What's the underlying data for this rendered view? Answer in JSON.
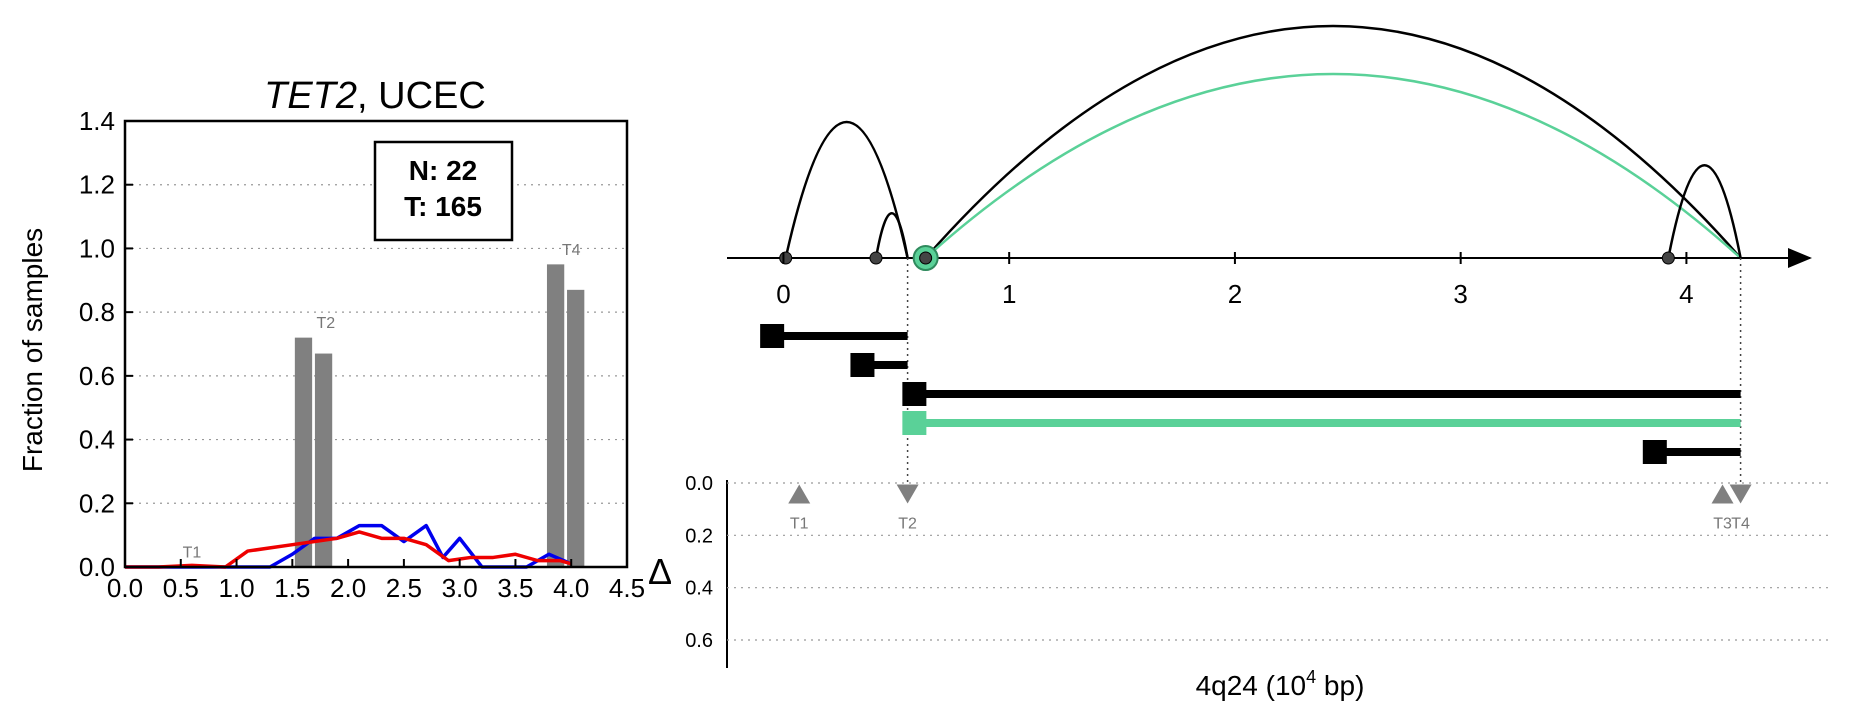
{
  "chart_data": [
    {
      "type": "bar",
      "title_italic": "TET2",
      "title_rest": ", UCEC",
      "ylabel": "Fraction of samples",
      "xlim": [
        0.0,
        4.5
      ],
      "ylim": [
        0.0,
        1.4
      ],
      "xticks": [
        "0.0",
        "0.5",
        "1.0",
        "1.5",
        "2.0",
        "2.5",
        "3.0",
        "3.5",
        "4.0",
        "4.5"
      ],
      "yticks": [
        "0.0",
        "0.2",
        "0.4",
        "0.6",
        "0.8",
        "1.0",
        "1.2",
        "1.4"
      ],
      "grid": true,
      "legend": {
        "placement": "top-center",
        "n_label": "N: 22",
        "t_label": "T: 165"
      },
      "bars": [
        {
          "x": 1.6,
          "value": 0.72
        },
        {
          "x": 1.78,
          "value": 0.67
        },
        {
          "x": 3.86,
          "value": 0.95
        },
        {
          "x": 4.04,
          "value": 0.87
        }
      ],
      "site_labels": [
        {
          "label": "T1",
          "x": 0.6,
          "y": 0.03
        },
        {
          "label": "T2",
          "x": 1.8,
          "y": 0.75
        },
        {
          "label": "T4",
          "x": 4.0,
          "y": 0.98
        }
      ],
      "series": [
        {
          "color": "#0000ee",
          "x": [
            0.0,
            0.3,
            0.6,
            0.9,
            1.1,
            1.3,
            1.5,
            1.7,
            1.9,
            2.1,
            2.3,
            2.5,
            2.7,
            2.85,
            3.0,
            3.2,
            3.4,
            3.6,
            3.8,
            4.0
          ],
          "y": [
            0.0,
            0.0,
            0.0,
            0.0,
            0.0,
            0.0,
            0.04,
            0.09,
            0.09,
            0.13,
            0.13,
            0.08,
            0.13,
            0.03,
            0.09,
            0.0,
            0.0,
            0.0,
            0.04,
            0.01
          ]
        },
        {
          "color": "#ee0000",
          "x": [
            0.0,
            0.3,
            0.6,
            0.9,
            1.1,
            1.3,
            1.5,
            1.7,
            1.9,
            2.1,
            2.3,
            2.5,
            2.7,
            2.9,
            3.1,
            3.3,
            3.5,
            3.7,
            3.9,
            4.0
          ],
          "y": [
            0.0,
            0.0,
            0.005,
            0.0,
            0.05,
            0.06,
            0.07,
            0.08,
            0.09,
            0.11,
            0.09,
            0.09,
            0.07,
            0.02,
            0.03,
            0.03,
            0.04,
            0.02,
            0.02,
            0.01
          ]
        }
      ]
    },
    {
      "type": "diagram",
      "xlabel_pre": "4q24 (10",
      "xlabel_exp": "4",
      "xlabel_post": " bp)",
      "xlim": [
        -0.25,
        4.45
      ],
      "xticks": [
        "0",
        "1",
        "2",
        "3",
        "4"
      ],
      "sites": [
        {
          "x": 0.01
        },
        {
          "x": 0.41
        },
        {
          "x": 0.63,
          "highlight": true,
          "color": "#5ad198"
        },
        {
          "x": 3.92
        }
      ],
      "arcs": [
        {
          "x1": 0.01,
          "x2": 0.55,
          "height": 0.85,
          "color": "#000000"
        },
        {
          "x1": 0.41,
          "x2": 0.55,
          "height": 0.28,
          "color": "#000000"
        },
        {
          "x1": 0.63,
          "x2": 4.24,
          "height": 1.45,
          "color": "#000000"
        },
        {
          "x1": 0.63,
          "x2": 4.24,
          "height": 1.15,
          "color": "#5ad198"
        },
        {
          "x1": 3.92,
          "x2": 4.24,
          "height": 0.58,
          "color": "#000000"
        }
      ],
      "segments": [
        {
          "start": -0.05,
          "end": 0.55,
          "color": "#000000"
        },
        {
          "start": 0.35,
          "end": 0.55,
          "color": "#000000"
        },
        {
          "start": 0.58,
          "end": 4.24,
          "color": "#000000"
        },
        {
          "start": 0.58,
          "end": 4.24,
          "color": "#5ad198"
        },
        {
          "start": 3.86,
          "end": 4.24,
          "color": "#000000"
        }
      ],
      "delta_label": "Δ",
      "delta_ticks": [
        "0.0",
        "0.2",
        "0.4",
        "0.6"
      ],
      "delta_ylim": [
        0.0,
        0.6
      ],
      "markers": [
        {
          "label": "T1",
          "x": 0.07,
          "dir": "up"
        },
        {
          "label": "T2",
          "x": 0.55,
          "dir": "down"
        },
        {
          "label": "T3",
          "x": 4.16,
          "dir": "up"
        },
        {
          "label": "T4",
          "x": 4.24,
          "dir": "down"
        }
      ],
      "marker_delta": 0.04
    }
  ]
}
